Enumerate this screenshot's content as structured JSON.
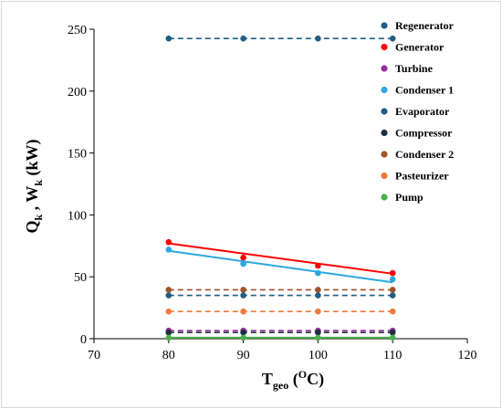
{
  "chart_data": {
    "type": "scatter",
    "xlabel": {
      "main": "T",
      "sub": "geo",
      "open": " (",
      "sup": "O",
      "unit": "C)"
    },
    "ylabel": {
      "q": "Q",
      "q_sub": "k",
      "sep": " , ",
      "w": "W",
      "w_sub": "k",
      "unit": " (kW)"
    },
    "xlim": [
      70,
      120
    ],
    "ylim": [
      0,
      250
    ],
    "x_ticks": [
      70,
      80,
      90,
      100,
      110,
      120
    ],
    "y_ticks": [
      0,
      50,
      100,
      150,
      200,
      250
    ],
    "legend_position": "right",
    "x": [
      80,
      90,
      100,
      110
    ],
    "series": [
      {
        "name": "Regenerator",
        "color": "#1f5f84",
        "values": [
          242.5,
          242.5,
          242.5,
          242.5
        ],
        "line": "dashed"
      },
      {
        "name": "Generator",
        "color": "#ff0000",
        "values": [
          78,
          65.5,
          59,
          53
        ],
        "line": "solid",
        "fit": [
          77,
          52.5
        ]
      },
      {
        "name": "Turbine",
        "color": "#9b2d9b",
        "values": [
          6.5,
          6.5,
          6.5,
          6.5
        ],
        "line": "dashed"
      },
      {
        "name": "Condenser 1",
        "color": "#29a8e0",
        "values": [
          72,
          60.5,
          53,
          48
        ],
        "line": "solid",
        "fit": [
          71,
          45.5
        ]
      },
      {
        "name": "Evaporator",
        "color": "#1f5f84",
        "values": [
          35,
          35,
          35,
          35
        ],
        "line": "dashed"
      },
      {
        "name": "Compressor",
        "color": "#1c2f3f",
        "values": [
          5,
          5,
          5,
          5
        ],
        "line": "dashed"
      },
      {
        "name": "Condenser 2",
        "color": "#a0522d",
        "values": [
          39.5,
          39.5,
          39.5,
          39.5
        ],
        "line": "dashed"
      },
      {
        "name": "Pasteurizer",
        "color": "#f07a3c",
        "values": [
          22,
          22,
          22,
          22
        ],
        "line": "dashed"
      },
      {
        "name": "Pump",
        "color": "#4cae4c",
        "values": [
          0.8,
          0.8,
          0.8,
          0.8
        ],
        "line": "solid"
      }
    ]
  }
}
